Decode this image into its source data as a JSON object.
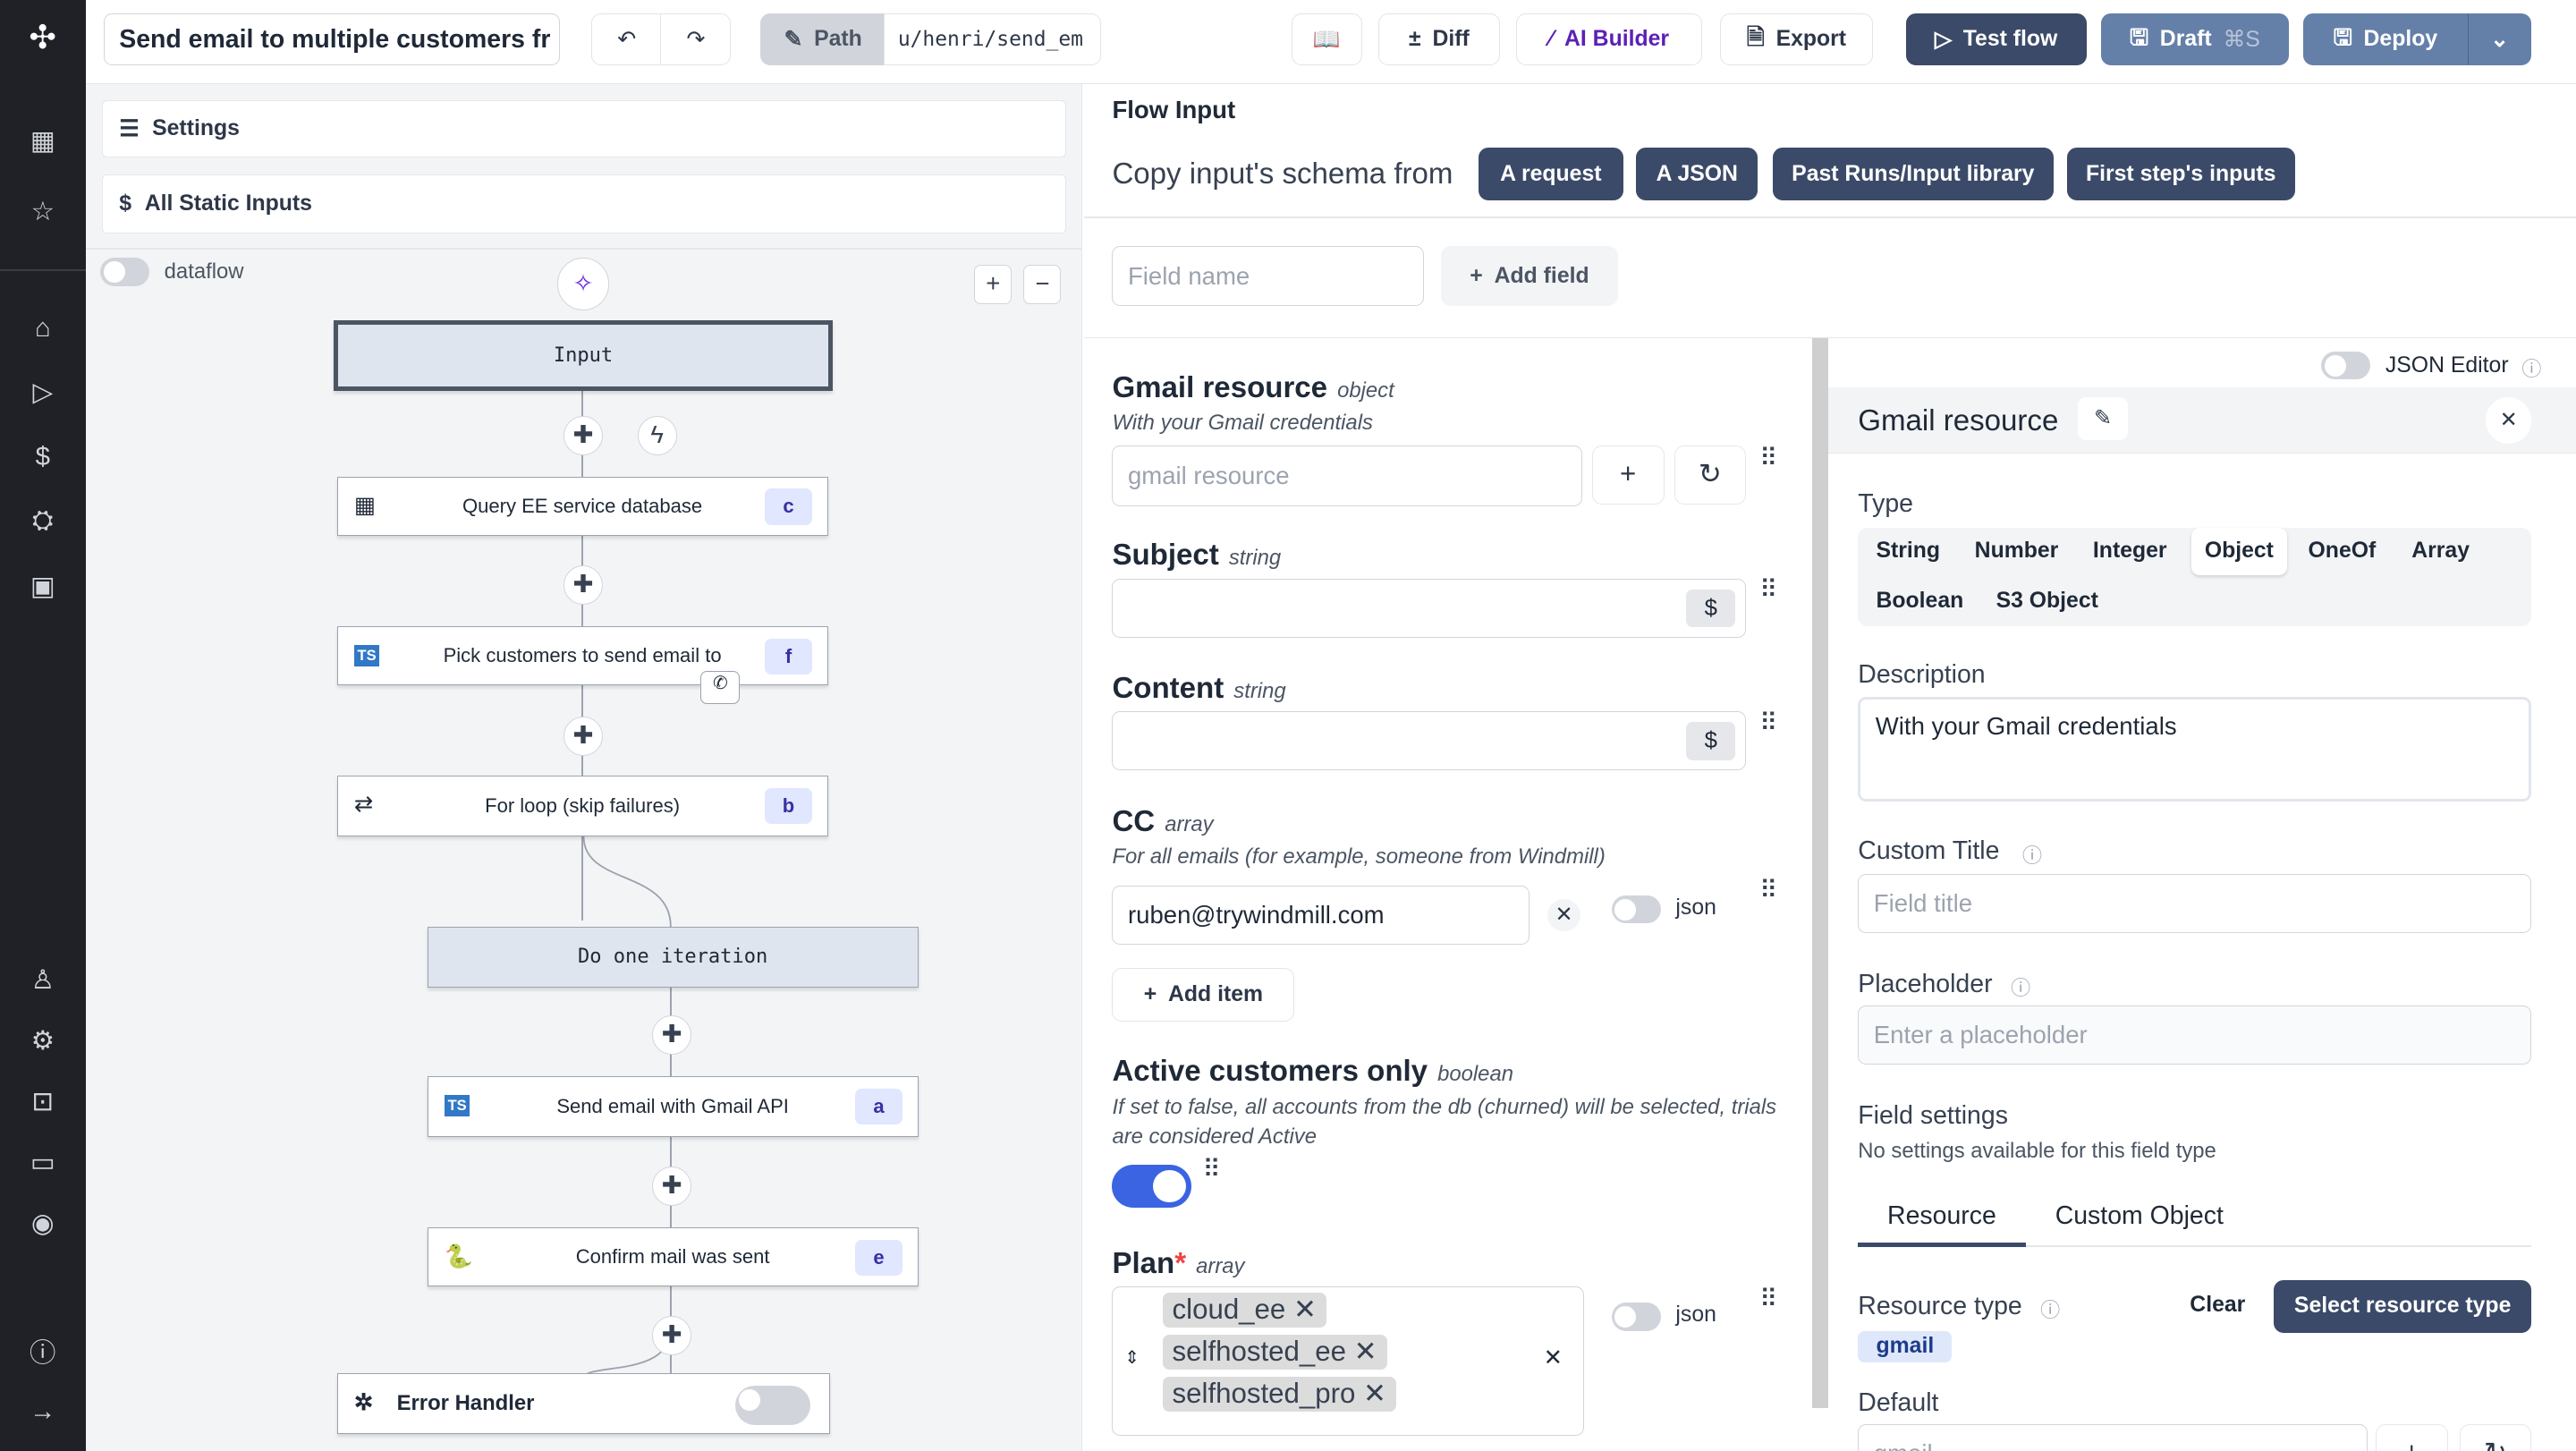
{
  "sidebar": {
    "top_icons": [
      "windmill-logo",
      "building-icon",
      "star-icon",
      "home-icon",
      "play-icon",
      "dollar-icon",
      "cubes-icon",
      "calendar-icon"
    ],
    "bottom_icons": [
      "user-icon",
      "gear-icon",
      "bot-icon",
      "folder-icon",
      "eye-icon",
      "help-icon",
      "expand-icon"
    ]
  },
  "toolbar": {
    "title": "Send email to multiple customers fr",
    "path_label": "Path",
    "path_value": "u/henri/send_em",
    "diff": "Diff",
    "ai_builder": "AI Builder",
    "export": "Export",
    "test_flow": "Test flow",
    "draft": "Draft",
    "draft_shortcut": "⌘S",
    "deploy": "Deploy"
  },
  "left": {
    "settings": "Settings",
    "static_inputs": "All Static Inputs",
    "dataflow": "dataflow",
    "nodes": [
      {
        "label": "Input"
      },
      {
        "label": "Query EE service database",
        "id": "c"
      },
      {
        "label": "Pick customers to send email to",
        "id": "f"
      },
      {
        "label": "For loop (skip failures)",
        "id": "b"
      },
      {
        "label": "Do one iteration"
      },
      {
        "label": "Send email with Gmail API",
        "id": "a"
      },
      {
        "label": "Confirm mail was sent",
        "id": "e"
      },
      {
        "label": "Error Handler"
      }
    ]
  },
  "flow_input": {
    "title": "Flow Input",
    "copy_from": "Copy input's schema from",
    "copy_buttons": [
      "A request",
      "A JSON",
      "Past Runs/Input library",
      "First step's inputs"
    ],
    "field_name_placeholder": "Field name",
    "add_field": "Add field",
    "fields": {
      "gmail": {
        "name": "Gmail resource",
        "type": "object",
        "description": "With your Gmail credentials",
        "placeholder": "gmail resource"
      },
      "subject": {
        "name": "Subject",
        "type": "string",
        "currency": "$"
      },
      "content": {
        "name": "Content",
        "type": "string",
        "currency": "$"
      },
      "cc": {
        "name": "CC",
        "type": "array",
        "description": "For all emails (for example, someone from Windmill)",
        "value": "ruben@trywindmill.com",
        "json_label": "json",
        "add_item": "Add item"
      },
      "active": {
        "name": "Active customers only",
        "type": "boolean",
        "description": "If set to false, all accounts from the db (churned) will be selected, trials are considered Active",
        "value": true
      },
      "plan": {
        "name": "Plan",
        "required": "*",
        "type": "array",
        "values": [
          "cloud_ee",
          "selfhosted_ee",
          "selfhosted_pro"
        ],
        "json_label": "json"
      }
    }
  },
  "editor": {
    "json_editor": "JSON Editor",
    "title": "Gmail resource",
    "type_label": "Type",
    "types": [
      "String",
      "Number",
      "Integer",
      "Object",
      "OneOf",
      "Array",
      "Boolean",
      "S3 Object"
    ],
    "selected_type": "Object",
    "description_label": "Description",
    "description_value": "With your Gmail credentials",
    "custom_title_label": "Custom Title",
    "custom_title_placeholder": "Field title",
    "placeholder_label": "Placeholder",
    "placeholder_placeholder": "Enter a placeholder",
    "field_settings": "Field settings",
    "no_settings": "No settings available for this field type",
    "tabs": [
      "Resource",
      "Custom Object"
    ],
    "resource_type_label": "Resource type",
    "clear": "Clear",
    "select_resource_type": "Select resource type",
    "resource_badge": "gmail",
    "default_label": "Default",
    "default_value": "gmail"
  },
  "colors": {
    "sidebar": "#1f2126",
    "primary": "#3b4a68",
    "draft": "#6580a8",
    "toggle_on": "#3b64e2",
    "badge_bg": "#e0e7ff"
  }
}
